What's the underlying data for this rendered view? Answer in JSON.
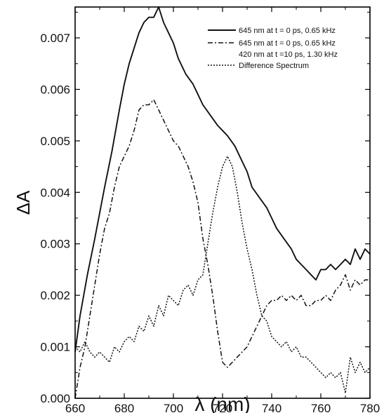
{
  "chart_data": {
    "type": "line",
    "xlabel": "λ (nm)",
    "ylabel": "ΔA",
    "xlim": [
      660,
      780
    ],
    "ylim": [
      0.0,
      0.0076
    ],
    "x_ticks": [
      660,
      680,
      700,
      720,
      740,
      760,
      780
    ],
    "y_ticks": [
      0.0,
      0.001,
      0.002,
      0.003,
      0.004,
      0.005,
      0.006,
      0.007
    ],
    "x_tick_labels": [
      "660",
      "680",
      "700",
      "720",
      "740",
      "760",
      "780"
    ],
    "y_tick_labels": [
      "0.000",
      "0.001",
      "0.002",
      "0.003",
      "0.004",
      "0.005",
      "0.006",
      "0.007"
    ],
    "legend_position": "top-right",
    "legend_lines": [
      "645 nm at t = 0 ps, 0.65 kHz",
      "645 nm at t = 0 ps, 0.65 kHz",
      "420 nm at t =10 ps, 1.30 kHz",
      "Difference Spectrum"
    ],
    "series": [
      {
        "name": "645 nm at t = 0 ps, 0.65 kHz",
        "style": "solid",
        "x": [
          660,
          662,
          665,
          668,
          670,
          672,
          675,
          678,
          680,
          682,
          684,
          686,
          688,
          690,
          692,
          694,
          696,
          698,
          700,
          702,
          705,
          708,
          710,
          712,
          715,
          718,
          720,
          722,
          725,
          728,
          730,
          732,
          735,
          738,
          740,
          742,
          745,
          748,
          750,
          752,
          754,
          756,
          758,
          760,
          762,
          764,
          766,
          768,
          770,
          772,
          774,
          776,
          778,
          780
        ],
        "y": [
          0.0009,
          0.0016,
          0.0024,
          0.0031,
          0.0036,
          0.0041,
          0.0048,
          0.0056,
          0.0061,
          0.0065,
          0.0068,
          0.0071,
          0.0073,
          0.0074,
          0.0074,
          0.0076,
          0.0073,
          0.0071,
          0.0069,
          0.0066,
          0.0063,
          0.0061,
          0.0059,
          0.0057,
          0.0055,
          0.0053,
          0.0052,
          0.0051,
          0.0049,
          0.0046,
          0.0044,
          0.0041,
          0.0039,
          0.0037,
          0.0035,
          0.0033,
          0.0031,
          0.0029,
          0.0027,
          0.0026,
          0.0025,
          0.0024,
          0.0023,
          0.0025,
          0.0025,
          0.0026,
          0.0025,
          0.0026,
          0.0027,
          0.0026,
          0.0029,
          0.0027,
          0.0029,
          0.0028
        ]
      },
      {
        "name": "645 nm at t = 0 ps, 0.65 kHz / 420 nm at t =10 ps, 1.30 kHz",
        "style": "dashdot",
        "x": [
          660,
          662,
          664,
          666,
          668,
          670,
          672,
          674,
          676,
          678,
          680,
          682,
          684,
          686,
          688,
          690,
          692,
          694,
          696,
          698,
          700,
          702,
          704,
          706,
          708,
          710,
          712,
          714,
          716,
          718,
          720,
          722,
          724,
          726,
          728,
          730,
          732,
          734,
          736,
          738,
          740,
          742,
          744,
          746,
          748,
          750,
          752,
          754,
          756,
          758,
          760,
          762,
          764,
          766,
          768,
          770,
          772,
          774,
          776,
          778,
          780
        ],
        "y": [
          0.0,
          0.0006,
          0.001,
          0.0016,
          0.0022,
          0.0028,
          0.0033,
          0.0036,
          0.0041,
          0.0045,
          0.0047,
          0.0049,
          0.0052,
          0.0056,
          0.0057,
          0.0057,
          0.0058,
          0.0056,
          0.0054,
          0.0052,
          0.005,
          0.0049,
          0.0047,
          0.0045,
          0.0042,
          0.0038,
          0.0031,
          0.0026,
          0.002,
          0.0013,
          0.0007,
          0.0006,
          0.0007,
          0.0008,
          0.0009,
          0.001,
          0.0012,
          0.0014,
          0.0016,
          0.0018,
          0.0019,
          0.0019,
          0.002,
          0.0019,
          0.002,
          0.0019,
          0.002,
          0.0018,
          0.0018,
          0.0019,
          0.0019,
          0.002,
          0.0019,
          0.0021,
          0.0022,
          0.0024,
          0.0021,
          0.0023,
          0.0022,
          0.0023,
          0.0023
        ]
      },
      {
        "name": "Difference Spectrum",
        "style": "dotted",
        "x": [
          660,
          662,
          664,
          666,
          668,
          670,
          672,
          674,
          676,
          678,
          680,
          682,
          684,
          686,
          688,
          690,
          692,
          694,
          696,
          698,
          700,
          702,
          704,
          706,
          708,
          710,
          712,
          714,
          716,
          718,
          720,
          722,
          724,
          726,
          728,
          730,
          732,
          734,
          736,
          738,
          740,
          742,
          744,
          746,
          748,
          750,
          752,
          754,
          756,
          758,
          760,
          762,
          764,
          766,
          768,
          770,
          772,
          774,
          776,
          778,
          780
        ],
        "y": [
          0.001,
          0.0009,
          0.0011,
          0.0009,
          0.0008,
          0.0009,
          0.0008,
          0.0007,
          0.001,
          0.0009,
          0.0011,
          0.0012,
          0.0011,
          0.0014,
          0.0013,
          0.0016,
          0.0014,
          0.0018,
          0.0016,
          0.002,
          0.0019,
          0.0018,
          0.0021,
          0.0022,
          0.002,
          0.0023,
          0.0024,
          0.003,
          0.0036,
          0.0041,
          0.0045,
          0.0047,
          0.0045,
          0.004,
          0.0034,
          0.0029,
          0.0025,
          0.002,
          0.0016,
          0.0015,
          0.0012,
          0.0011,
          0.001,
          0.0011,
          0.0009,
          0.001,
          0.0008,
          0.0008,
          0.0007,
          0.0006,
          0.0005,
          0.0004,
          0.0005,
          0.0004,
          0.0005,
          0.0001,
          0.0008,
          0.0005,
          0.0007,
          0.0005,
          0.0006
        ]
      }
    ]
  }
}
